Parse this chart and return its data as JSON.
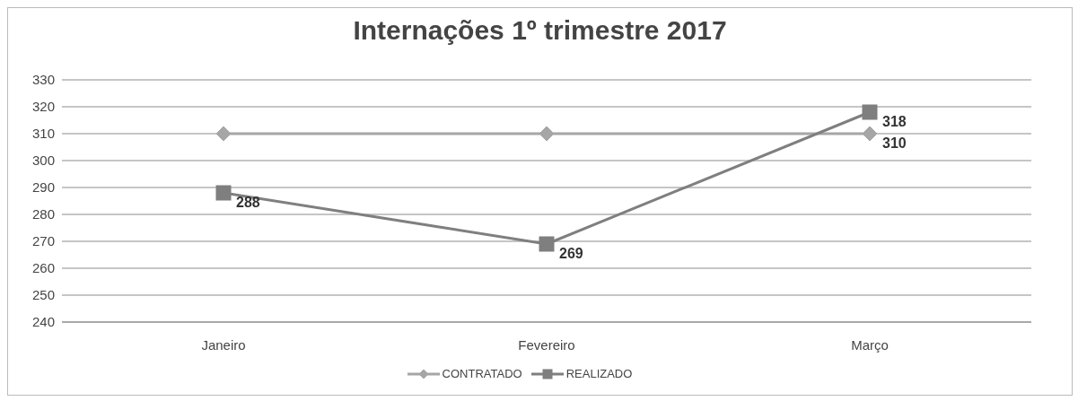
{
  "chart_data": {
    "type": "line",
    "title": "Internações 1º trimestre 2017",
    "categories": [
      "Janeiro",
      "Fevereiro",
      "Março"
    ],
    "series": [
      {
        "name": "CONTRATADO",
        "color": "#a6a6a6",
        "values": [
          310,
          310,
          310
        ],
        "marker": "diamond",
        "value_labels": [
          null,
          null,
          "310"
        ]
      },
      {
        "name": "REALIZADO",
        "color": "#7f7f7f",
        "values": [
          288,
          269,
          318
        ],
        "marker": "square",
        "value_labels": [
          "288",
          "269",
          "318"
        ]
      }
    ],
    "ylim": [
      240,
      330
    ],
    "yticks": [
      240,
      250,
      260,
      270,
      280,
      290,
      300,
      310,
      320,
      330
    ],
    "grid": "y",
    "legend": "bottom",
    "line_style": "solid"
  }
}
